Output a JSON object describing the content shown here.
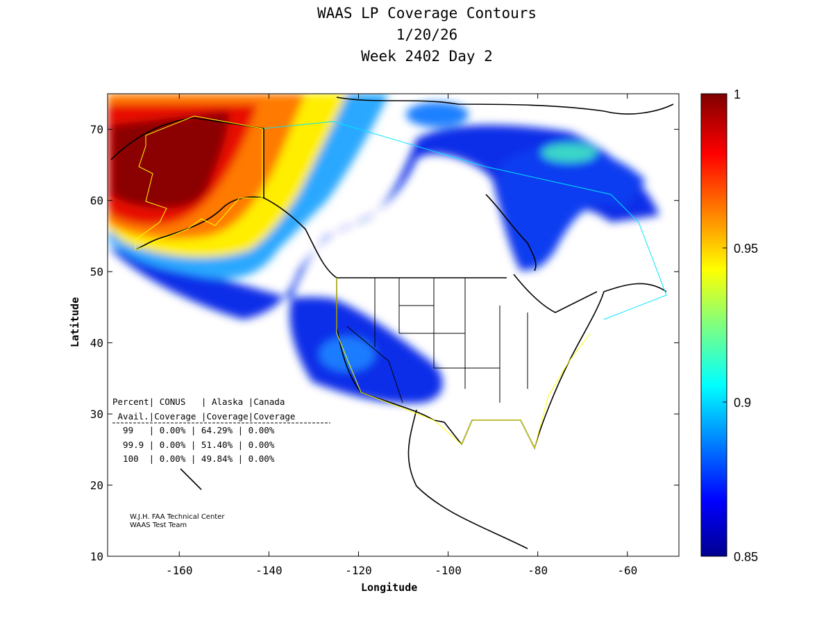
{
  "title": {
    "line1": "WAAS LP Coverage Contours",
    "line2": "1/20/26",
    "line3": "Week 2402 Day 2"
  },
  "map": {
    "xlabel": "Longitude",
    "ylabel": "Latitude",
    "xlim": [
      -176,
      -48.5
    ],
    "ylim": [
      10,
      75
    ],
    "xticks": [
      -160,
      -140,
      -120,
      -100,
      -80,
      -60
    ],
    "yticks": [
      10,
      20,
      30,
      40,
      50,
      60,
      70
    ]
  },
  "colorbar": {
    "min": 0.85,
    "max": 1,
    "ticks": [
      "1",
      "0.95",
      "0.9",
      "0.85"
    ],
    "tick_values": [
      1,
      0.95,
      0.9,
      0.85
    ]
  },
  "table": {
    "header1": "Percent| CONUS   | Alaska |Canada",
    "header2": " Avail.|Coverage |Coverage|Coverage",
    "rows": [
      "  99   | 0.00% | 64.29% | 0.00%",
      "  99.9 | 0.00% | 51.40% | 0.00%",
      "  100  | 0.00% | 49.84% | 0.00%"
    ]
  },
  "credit": {
    "line1": "W.J.H. FAA Technical Center",
    "line2": "WAAS Test Team"
  }
}
